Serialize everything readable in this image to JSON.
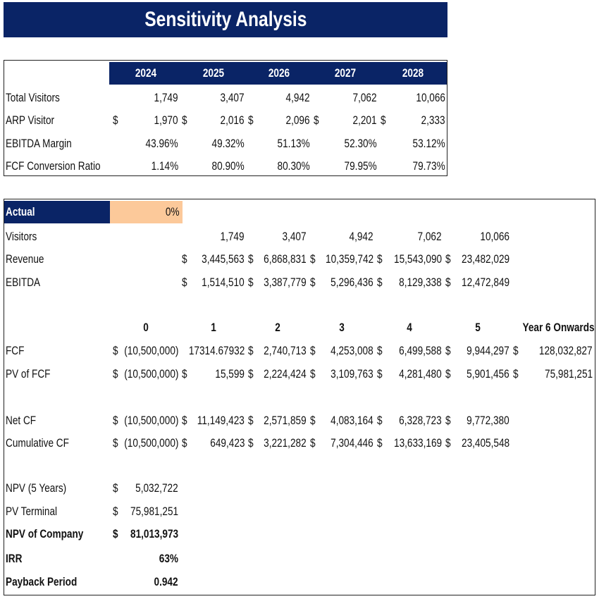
{
  "title": "Sensitivity Analysis",
  "colors": {
    "navy": "#0a2466",
    "input_fill": "#fcc99a"
  },
  "assumptions": {
    "years": [
      "2024",
      "2025",
      "2026",
      "2027",
      "2028"
    ],
    "rows": [
      {
        "label": "Total Visitors",
        "cells": [
          {
            "cur": "",
            "v": "1,749"
          },
          {
            "cur": "",
            "v": "3,407"
          },
          {
            "cur": "",
            "v": "4,942"
          },
          {
            "cur": "",
            "v": "7,062"
          },
          {
            "cur": "",
            "v": "10,066"
          }
        ]
      },
      {
        "label": "ARP Visitor",
        "cells": [
          {
            "cur": "$",
            "v": "1,970"
          },
          {
            "cur": "$",
            "v": "2,016"
          },
          {
            "cur": "$",
            "v": "2,096"
          },
          {
            "cur": "$",
            "v": "2,201"
          },
          {
            "cur": "$",
            "v": "2,333"
          }
        ]
      },
      {
        "label": "EBITDA Margin",
        "cells": [
          {
            "cur": "",
            "v": "43.96%"
          },
          {
            "cur": "",
            "v": "49.32%"
          },
          {
            "cur": "",
            "v": "51.13%"
          },
          {
            "cur": "",
            "v": "52.30%"
          },
          {
            "cur": "",
            "v": "53.12%"
          }
        ]
      },
      {
        "label": "FCF Conversion Ratio",
        "cells": [
          {
            "cur": "",
            "v": "1.14%"
          },
          {
            "cur": "",
            "v": "80.90%"
          },
          {
            "cur": "",
            "v": "80.30%"
          },
          {
            "cur": "",
            "v": "79.95%"
          },
          {
            "cur": "",
            "v": "79.73%"
          }
        ]
      }
    ]
  },
  "scenario": {
    "label": "Actual",
    "value": "0%"
  },
  "projection": [
    {
      "label": "Visitors",
      "cells": [
        null,
        {
          "cur": "",
          "v": "1,749"
        },
        {
          "cur": "",
          "v": "3,407"
        },
        {
          "cur": "",
          "v": "4,942"
        },
        {
          "cur": "",
          "v": "7,062"
        },
        {
          "cur": "",
          "v": "10,066"
        }
      ]
    },
    {
      "label": "Revenue",
      "cells": [
        null,
        {
          "cur": "$",
          "v": "3,445,563"
        },
        {
          "cur": "$",
          "v": "6,868,831"
        },
        {
          "cur": "$",
          "v": "10,359,742"
        },
        {
          "cur": "$",
          "v": "15,543,090"
        },
        {
          "cur": "$",
          "v": "23,482,029"
        }
      ]
    },
    {
      "label": "EBITDA",
      "cells": [
        null,
        {
          "cur": "$",
          "v": "1,514,510"
        },
        {
          "cur": "$",
          "v": "3,387,779"
        },
        {
          "cur": "$",
          "v": "5,296,436"
        },
        {
          "cur": "$",
          "v": "8,129,338"
        },
        {
          "cur": "$",
          "v": "12,472,849"
        }
      ]
    }
  ],
  "periods": [
    "0",
    "1",
    "2",
    "3",
    "4",
    "5",
    "Year 6 Onwards"
  ],
  "cashflows": [
    {
      "label": "FCF",
      "cells": [
        {
          "cur": "$",
          "v": "(10,500,000)"
        },
        {
          "cur": "",
          "v": "17314.67932"
        },
        {
          "cur": "$",
          "v": "2,740,713"
        },
        {
          "cur": "$",
          "v": "4,253,008"
        },
        {
          "cur": "$",
          "v": "6,499,588"
        },
        {
          "cur": "$",
          "v": "9,944,297"
        },
        {
          "cur": "$",
          "v": "128,032,827"
        }
      ]
    },
    {
      "label": "PV of FCF",
      "cells": [
        {
          "cur": "$",
          "v": "(10,500,000)"
        },
        {
          "cur": "$",
          "v": "15,599"
        },
        {
          "cur": "$",
          "v": "2,224,424"
        },
        {
          "cur": "$",
          "v": "3,109,763"
        },
        {
          "cur": "$",
          "v": "4,281,480"
        },
        {
          "cur": "$",
          "v": "5,901,456"
        },
        {
          "cur": "$",
          "v": "75,981,251"
        }
      ]
    },
    {
      "label": "Net CF",
      "cells": [
        {
          "cur": "$",
          "v": "(10,500,000)"
        },
        {
          "cur": "$",
          "v": "11,149,423"
        },
        {
          "cur": "$",
          "v": "2,571,859"
        },
        {
          "cur": "$",
          "v": "4,083,164"
        },
        {
          "cur": "$",
          "v": "6,328,723"
        },
        {
          "cur": "$",
          "v": "9,772,380"
        }
      ]
    },
    {
      "label": "Cumulative CF",
      "cells": [
        {
          "cur": "$",
          "v": "(10,500,000)"
        },
        {
          "cur": "$",
          "v": "649,423"
        },
        {
          "cur": "$",
          "v": "3,221,282"
        },
        {
          "cur": "$",
          "v": "7,304,446"
        },
        {
          "cur": "$",
          "v": "13,633,169"
        },
        {
          "cur": "$",
          "v": "23,405,548"
        }
      ]
    }
  ],
  "summary": [
    {
      "label": "NPV (5 Years)",
      "cur": "$",
      "v": "5,032,722",
      "bold": false
    },
    {
      "label": "PV Terminal",
      "cur": "$",
      "v": "75,981,251",
      "bold": false
    },
    {
      "label": "NPV of Company",
      "cur": "$",
      "v": "81,013,973",
      "bold": true
    },
    {
      "label": "IRR",
      "cur": "",
      "v": "63%",
      "bold": true
    },
    {
      "label": "Payback Period",
      "cur": "",
      "v": "0.942",
      "bold": true
    }
  ]
}
